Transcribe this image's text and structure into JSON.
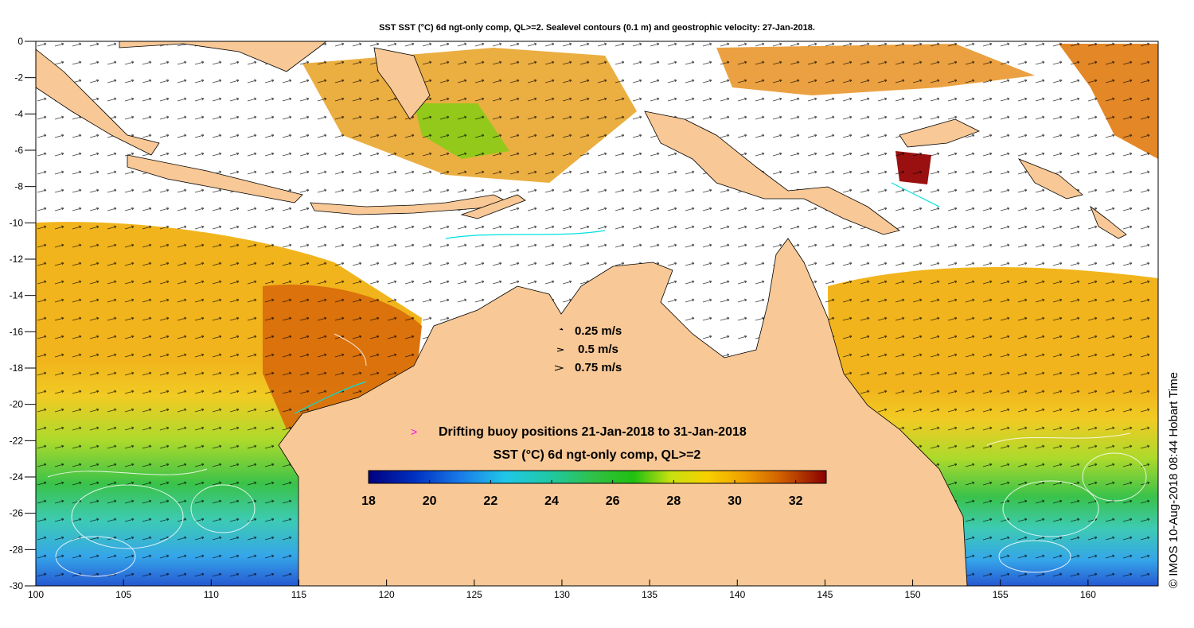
{
  "title": "SST SST (°C) 6d ngt-only comp, QL>=2. Sealevel contours (0.1 m) and geostrophic velocity: 27-Jan-2018.",
  "axes": {
    "x": {
      "min": 100,
      "max": 164,
      "ticks": [
        "100",
        "105",
        "110",
        "115",
        "120",
        "125",
        "130",
        "135",
        "140",
        "145",
        "150",
        "155",
        "160"
      ]
    },
    "y": {
      "min": -30,
      "max": 0,
      "ticks": [
        "0",
        "-2",
        "-4",
        "-6",
        "-8",
        "-10",
        "-12",
        "-14",
        "-16",
        "-18",
        "-20",
        "-22",
        "-24",
        "-26",
        "-28",
        "-30"
      ]
    }
  },
  "velocity_legend": [
    "0.25 m/s",
    "0.5 m/s",
    "0.75 m/s"
  ],
  "buoy_legend": {
    "symbol": ">",
    "label": "Drifting buoy positions 21-Jan-2018 to 31-Jan-2018",
    "color": "#ff00ff"
  },
  "colorbar": {
    "title": "SST (°C) 6d ngt-only comp, QL>=2",
    "min": 18,
    "max": 33,
    "tick_labels": [
      "18",
      "20",
      "22",
      "24",
      "26",
      "28",
      "30",
      "32"
    ]
  },
  "credit": "© IMOS 10-Aug-2018 08:44 Hobart Time",
  "colors": {
    "land": "#f8c896",
    "ocean_no_data": "#ffffff",
    "buoy": "#ff00ff",
    "coast": "#000000",
    "contour": "#ffffff"
  }
}
